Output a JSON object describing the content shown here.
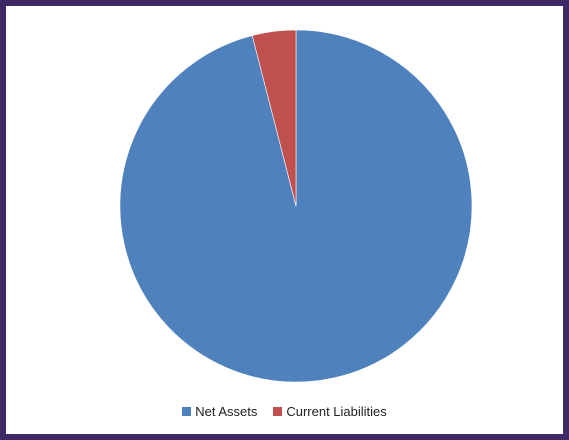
{
  "chart_data": {
    "type": "pie",
    "title": "",
    "slices": [
      {
        "label": "Net Assets",
        "value": 96,
        "color": "#4f81bd"
      },
      {
        "label": "Current Liabilities",
        "value": 4,
        "color": "#c0504d"
      }
    ],
    "start_angle": "12 o'clock",
    "direction": "clockwise",
    "legend": "bottom"
  },
  "legend": {
    "items": [
      {
        "label": "Net Assets",
        "color": "#4f81bd"
      },
      {
        "label": "Current Liabilities",
        "color": "#c0504d"
      }
    ]
  },
  "colors": {
    "frame": "#3f2a68",
    "background": "#ffffff"
  }
}
